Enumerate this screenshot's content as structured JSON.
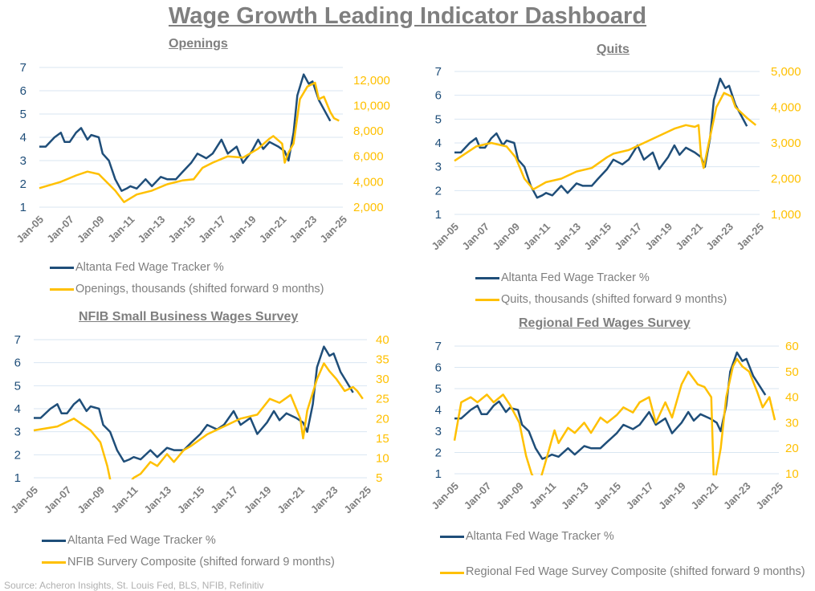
{
  "title": "Wage Growth Leading Indicator Dashboard",
  "source": "Source: Acheron Insights, St. Louis Fed, BLS, NFIB, Refinitiv",
  "colors": {
    "wage": "#1f4e79",
    "indicator": "#ffc000",
    "grid": "#d9e6f2",
    "text": "#7f7f7f"
  },
  "wage_tracker": [
    [
      "2005-01",
      3.6
    ],
    [
      "2005-06",
      3.6
    ],
    [
      "2006-01",
      4.0
    ],
    [
      "2006-06",
      4.2
    ],
    [
      "2006-09",
      3.8
    ],
    [
      "2007-01",
      3.8
    ],
    [
      "2007-06",
      4.2
    ],
    [
      "2007-10",
      4.4
    ],
    [
      "2008-03",
      3.9
    ],
    [
      "2008-06",
      4.1
    ],
    [
      "2008-12",
      4.0
    ],
    [
      "2009-03",
      3.3
    ],
    [
      "2009-08",
      3.0
    ],
    [
      "2010-01",
      2.2
    ],
    [
      "2010-06",
      1.7
    ],
    [
      "2010-10",
      1.8
    ],
    [
      "2011-01",
      1.9
    ],
    [
      "2011-06",
      1.8
    ],
    [
      "2012-01",
      2.2
    ],
    [
      "2012-06",
      1.9
    ],
    [
      "2013-01",
      2.3
    ],
    [
      "2013-06",
      2.2
    ],
    [
      "2014-01",
      2.2
    ],
    [
      "2014-06",
      2.5
    ],
    [
      "2015-01",
      2.9
    ],
    [
      "2015-06",
      3.3
    ],
    [
      "2016-01",
      3.1
    ],
    [
      "2016-06",
      3.3
    ],
    [
      "2017-01",
      3.9
    ],
    [
      "2017-06",
      3.3
    ],
    [
      "2018-01",
      3.6
    ],
    [
      "2018-06",
      2.9
    ],
    [
      "2019-01",
      3.4
    ],
    [
      "2019-06",
      3.9
    ],
    [
      "2019-10",
      3.5
    ],
    [
      "2020-03",
      3.8
    ],
    [
      "2020-10",
      3.6
    ],
    [
      "2021-03",
      3.4
    ],
    [
      "2021-06",
      3.0
    ],
    [
      "2021-10",
      4.2
    ],
    [
      "2022-01",
      5.8
    ],
    [
      "2022-06",
      6.7
    ],
    [
      "2022-10",
      6.3
    ],
    [
      "2023-01",
      6.4
    ],
    [
      "2023-06",
      5.6
    ],
    [
      "2023-10",
      5.2
    ],
    [
      "2024-03",
      4.7
    ]
  ],
  "chart_data": [
    {
      "type": "line",
      "title": "Openings",
      "x_ticks": [
        "Jan-05",
        "Jan-07",
        "Jan-09",
        "Jan-11",
        "Jan-13",
        "Jan-15",
        "Jan-17",
        "Jan-19",
        "Jan-21",
        "Jan-23",
        "Jan-25"
      ],
      "y_left": {
        "range": [
          1,
          7
        ],
        "ticks": [
          "1",
          "2",
          "3",
          "4",
          "5",
          "6",
          "7"
        ]
      },
      "y_right": {
        "range": [
          2000,
          13000
        ],
        "ticks": [
          "2,000",
          "4,000",
          "6,000",
          "8,000",
          "10,000",
          "12,000"
        ],
        "tick_values": [
          2000,
          4000,
          6000,
          8000,
          10000,
          12000
        ]
      },
      "legend": [
        "Altanta Fed Wage Tracker %",
        "Openings, thousands (shifted forward 9 months)"
      ],
      "indicator": [
        [
          "2005-01",
          3500
        ],
        [
          "2006-06",
          4000
        ],
        [
          "2007-06",
          4500
        ],
        [
          "2008-03",
          4800
        ],
        [
          "2008-12",
          4600
        ],
        [
          "2009-06",
          4000
        ],
        [
          "2010-01",
          3300
        ],
        [
          "2010-08",
          2400
        ],
        [
          "2011-06",
          3000
        ],
        [
          "2012-06",
          3300
        ],
        [
          "2013-06",
          3800
        ],
        [
          "2014-06",
          4100
        ],
        [
          "2015-03",
          4200
        ],
        [
          "2015-10",
          5100
        ],
        [
          "2016-06",
          5500
        ],
        [
          "2017-06",
          6000
        ],
        [
          "2018-06",
          5900
        ],
        [
          "2019-06",
          6600
        ],
        [
          "2020-03",
          7400
        ],
        [
          "2020-06",
          7600
        ],
        [
          "2021-01",
          7000
        ],
        [
          "2021-03",
          5500
        ],
        [
          "2021-06",
          6300
        ],
        [
          "2021-10",
          7000
        ],
        [
          "2022-03",
          10500
        ],
        [
          "2022-09",
          11500
        ],
        [
          "2023-03",
          11800
        ],
        [
          "2023-06",
          10500
        ],
        [
          "2023-10",
          10700
        ],
        [
          "2024-03",
          9500
        ],
        [
          "2024-06",
          9000
        ],
        [
          "2024-10",
          8800
        ]
      ]
    },
    {
      "type": "line",
      "title": "Quits",
      "x_ticks": [
        "Jan-05",
        "Jan-07",
        "Jan-09",
        "Jan-11",
        "Jan-13",
        "Jan-15",
        "Jan-17",
        "Jan-19",
        "Jan-21",
        "Jan-23",
        "Jan-25"
      ],
      "y_left": {
        "range": [
          1,
          7
        ],
        "ticks": [
          "1",
          "2",
          "3",
          "4",
          "5",
          "6",
          "7"
        ]
      },
      "y_right": {
        "range": [
          1000,
          5000
        ],
        "ticks": [
          "1,000",
          "2,000",
          "3,000",
          "4,000",
          "5,000"
        ],
        "tick_values": [
          1000,
          2000,
          3000,
          4000,
          5000
        ]
      },
      "legend": [
        "Altanta Fed Wage Tracker %",
        "Quits, thousands (shifted forward 9 months)"
      ],
      "indicator": [
        [
          "2005-01",
          2500
        ],
        [
          "2006-06",
          2900
        ],
        [
          "2007-06",
          3000
        ],
        [
          "2008-06",
          2900
        ],
        [
          "2009-01",
          2600
        ],
        [
          "2009-08",
          2000
        ],
        [
          "2010-03",
          1700
        ],
        [
          "2011-01",
          1900
        ],
        [
          "2012-01",
          2000
        ],
        [
          "2013-01",
          2200
        ],
        [
          "2014-01",
          2300
        ],
        [
          "2015-01",
          2600
        ],
        [
          "2015-06",
          2700
        ],
        [
          "2016-06",
          2800
        ],
        [
          "2017-06",
          3000
        ],
        [
          "2018-06",
          3200
        ],
        [
          "2019-06",
          3400
        ],
        [
          "2020-03",
          3500
        ],
        [
          "2020-10",
          3450
        ],
        [
          "2021-01",
          3500
        ],
        [
          "2021-03",
          2600
        ],
        [
          "2021-05",
          2300
        ],
        [
          "2021-09",
          3000
        ],
        [
          "2022-03",
          4000
        ],
        [
          "2022-09",
          4400
        ],
        [
          "2023-03",
          4300
        ],
        [
          "2023-06",
          4000
        ],
        [
          "2024-03",
          3700
        ],
        [
          "2024-10",
          3500
        ]
      ]
    },
    {
      "type": "line",
      "title": "NFIB Small Business Wages Survey",
      "x_ticks": [
        "Jan-05",
        "Jan-07",
        "Jan-09",
        "Jan-11",
        "Jan-13",
        "Jan-15",
        "Jan-17",
        "Jan-19",
        "Jan-21",
        "Jan-23",
        "Jan-25"
      ],
      "y_left": {
        "range": [
          1,
          7
        ],
        "ticks": [
          "1",
          "2",
          "3",
          "4",
          "5",
          "6",
          "7"
        ]
      },
      "y_right": {
        "range": [
          5,
          40
        ],
        "ticks": [
          "5",
          "10",
          "15",
          "20",
          "25",
          "30",
          "35",
          "40"
        ],
        "tick_values": [
          5,
          10,
          15,
          20,
          25,
          30,
          35,
          40
        ]
      },
      "legend": [
        "Altanta Fed Wage Tracker %",
        "NFIB Survery Composite (shifted forward 9 months)"
      ],
      "indicator": [
        [
          "2005-01",
          17
        ],
        [
          "2006-06",
          18
        ],
        [
          "2007-06",
          20
        ],
        [
          "2008-06",
          17
        ],
        [
          "2009-01",
          14
        ],
        [
          "2009-06",
          8
        ],
        [
          "2009-09",
          3
        ],
        [
          "2010-06",
          2
        ],
        [
          "2011-01",
          5
        ],
        [
          "2011-06",
          6
        ],
        [
          "2012-01",
          9
        ],
        [
          "2012-06",
          8
        ],
        [
          "2013-01",
          11
        ],
        [
          "2013-06",
          9
        ],
        [
          "2014-01",
          12
        ],
        [
          "2014-06",
          13
        ],
        [
          "2015-06",
          16
        ],
        [
          "2016-06",
          18
        ],
        [
          "2017-06",
          20
        ],
        [
          "2018-06",
          21
        ],
        [
          "2019-03",
          25
        ],
        [
          "2019-10",
          24
        ],
        [
          "2020-06",
          26
        ],
        [
          "2021-01",
          20
        ],
        [
          "2021-03",
          15
        ],
        [
          "2021-06",
          22
        ],
        [
          "2022-01",
          30
        ],
        [
          "2022-06",
          34
        ],
        [
          "2022-10",
          32
        ],
        [
          "2023-03",
          30
        ],
        [
          "2023-09",
          27
        ],
        [
          "2024-03",
          28
        ],
        [
          "2024-06",
          27
        ],
        [
          "2024-10",
          25
        ]
      ]
    },
    {
      "type": "line",
      "title": "Regional Fed Wages Survey",
      "x_ticks": [
        "Jan-05",
        "Jan-07",
        "Jan-09",
        "Jan-11",
        "Jan-13",
        "Jan-15",
        "Jan-17",
        "Jan-19",
        "Jan-21",
        "Jan-23",
        "Jan-25"
      ],
      "y_left": {
        "range": [
          1,
          7
        ],
        "ticks": [
          "1",
          "2",
          "3",
          "4",
          "5",
          "6",
          "7"
        ]
      },
      "y_right": {
        "range": [
          10,
          60
        ],
        "ticks": [
          "10",
          "20",
          "30",
          "40",
          "50",
          "60"
        ],
        "tick_values": [
          10,
          20,
          30,
          40,
          50,
          60
        ]
      },
      "legend": [
        "Altanta Fed Wage Tracker %",
        "Regional Fed Wage Survey Composite (shifted forward 9 months)"
      ],
      "indicator": [
        [
          "2005-01",
          23
        ],
        [
          "2005-06",
          38
        ],
        [
          "2006-01",
          40
        ],
        [
          "2006-06",
          38
        ],
        [
          "2007-01",
          41
        ],
        [
          "2007-06",
          38
        ],
        [
          "2008-01",
          41
        ],
        [
          "2008-06",
          37
        ],
        [
          "2009-01",
          30
        ],
        [
          "2009-06",
          17
        ],
        [
          "2009-10",
          10
        ],
        [
          "2010-03",
          5
        ],
        [
          "2010-08",
          14
        ],
        [
          "2011-03",
          27
        ],
        [
          "2011-06",
          22
        ],
        [
          "2012-01",
          28
        ],
        [
          "2012-06",
          26
        ],
        [
          "2013-01",
          30
        ],
        [
          "2013-06",
          26
        ],
        [
          "2014-01",
          32
        ],
        [
          "2014-06",
          30
        ],
        [
          "2015-01",
          33
        ],
        [
          "2015-06",
          36
        ],
        [
          "2016-01",
          34
        ],
        [
          "2016-06",
          38
        ],
        [
          "2017-01",
          40
        ],
        [
          "2017-06",
          30
        ],
        [
          "2018-01",
          38
        ],
        [
          "2018-06",
          32
        ],
        [
          "2019-01",
          45
        ],
        [
          "2019-06",
          50
        ],
        [
          "2020-01",
          45
        ],
        [
          "2020-06",
          44
        ],
        [
          "2020-11",
          40
        ],
        [
          "2021-01",
          5
        ],
        [
          "2021-06",
          20
        ],
        [
          "2021-10",
          40
        ],
        [
          "2022-03",
          52
        ],
        [
          "2022-06",
          55
        ],
        [
          "2022-10",
          52
        ],
        [
          "2023-03",
          50
        ],
        [
          "2023-09",
          42
        ],
        [
          "2024-01",
          36
        ],
        [
          "2024-06",
          40
        ],
        [
          "2024-10",
          31
        ]
      ]
    }
  ]
}
